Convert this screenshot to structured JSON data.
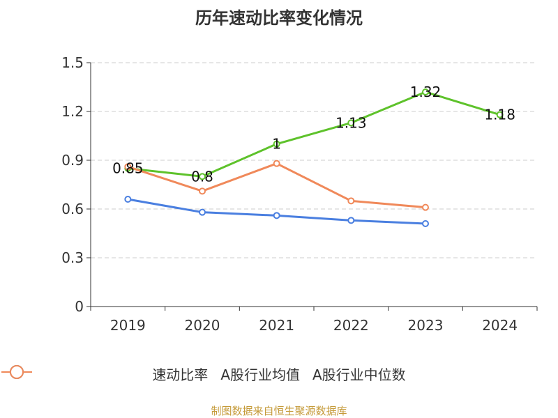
{
  "title": "历年速动比率变化情况",
  "source": "制图数据来自恒生聚源数据库",
  "chart_data": {
    "type": "line",
    "categories": [
      "2019",
      "2020",
      "2021",
      "2022",
      "2023",
      "2024"
    ],
    "ylim": [
      0,
      1.5
    ],
    "yticks": [
      0,
      0.3,
      0.6,
      0.9,
      1.2,
      1.5
    ],
    "ytick_labels": [
      "0",
      "0.3",
      "0.6",
      "0.9",
      "1.2",
      "1.5"
    ],
    "grid": true,
    "legend_position": "bottom",
    "series": [
      {
        "name": "速动比率",
        "color": "#5ec22b",
        "values": [
          0.85,
          0.8,
          1.0,
          1.13,
          1.32,
          1.18
        ],
        "labels": [
          "0.85",
          "0.8",
          "1",
          "1.13",
          "1.32",
          "1.18"
        ]
      },
      {
        "name": "A股行业均值",
        "color": "#4a7fe0",
        "values": [
          0.66,
          0.58,
          0.56,
          0.53,
          0.51,
          null
        ]
      },
      {
        "name": "A股行业中位数",
        "color": "#f0895a",
        "values": [
          0.86,
          0.71,
          0.88,
          0.65,
          0.61,
          null
        ]
      }
    ]
  }
}
